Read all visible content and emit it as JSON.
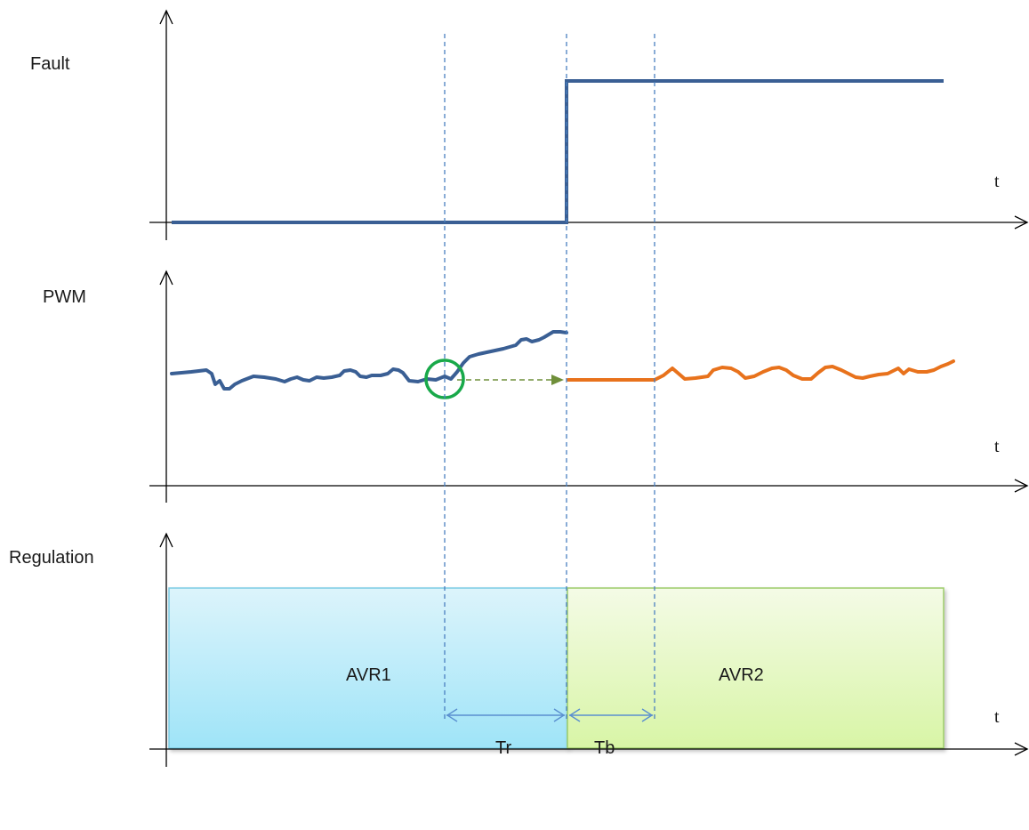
{
  "signals": {
    "fault": {
      "label": "Fault"
    },
    "pwm": {
      "label": "PWM"
    },
    "regulation": {
      "label": "Regulation"
    }
  },
  "time_axis_label": "t",
  "regulators": {
    "primary": {
      "label": "AVR1"
    },
    "backup": {
      "label": "AVR2"
    }
  },
  "intervals": {
    "reaction": {
      "label": "Tr"
    },
    "blanking": {
      "label": "Tb"
    }
  },
  "colors": {
    "axis": "#000000",
    "signal_blue": "#3a5f94",
    "pwm_backup": "#e8721c",
    "marker_circle": "#19a94a",
    "hold_arrow": "#6f8f3a",
    "guide_line": "#4a7fc0",
    "interval_arrow": "#5a8fcf",
    "avr1_box_top": "#dcf4fb",
    "avr1_box_bottom": "#9fe4f8",
    "avr1_border": "#7ccbe3",
    "avr2_box_top": "#f4fbe6",
    "avr2_box_bottom": "#d8f5a6",
    "avr2_border": "#9ccb6a"
  }
}
